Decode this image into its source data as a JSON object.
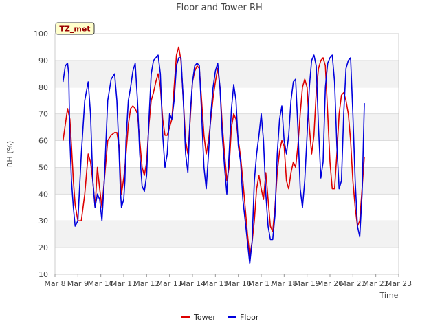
{
  "chart_data": {
    "type": "line",
    "title": "Floor and Tower RH",
    "xlabel": "Time",
    "ylabel": "RH (%)",
    "badge": "TZ_met",
    "ylim": [
      10,
      100
    ],
    "yticks": [
      10,
      20,
      30,
      40,
      50,
      60,
      70,
      80,
      90,
      100
    ],
    "xlim": [
      8,
      23
    ],
    "xticks": [
      {
        "x": 8,
        "label": "Mar 8"
      },
      {
        "x": 9,
        "label": "Mar 9"
      },
      {
        "x": 10,
        "label": "Mar 10"
      },
      {
        "x": 11,
        "label": "Mar 11"
      },
      {
        "x": 12,
        "label": "Mar 12"
      },
      {
        "x": 13,
        "label": "Mar 13"
      },
      {
        "x": 14,
        "label": "Mar 14"
      },
      {
        "x": 15,
        "label": "Mar 15"
      },
      {
        "x": 16,
        "label": "Mar 16"
      },
      {
        "x": 17,
        "label": "Mar 17"
      },
      {
        "x": 18,
        "label": "Mar 18"
      },
      {
        "x": 19,
        "label": "Mar 19"
      },
      {
        "x": 20,
        "label": "Mar 20"
      },
      {
        "x": 21,
        "label": "Mar 21"
      },
      {
        "x": 22,
        "label": "Mar 22"
      },
      {
        "x": 23,
        "label": "Mar 23"
      }
    ],
    "grid": true,
    "legend_position": "bottom",
    "series": [
      {
        "name": "Tower",
        "color": "#dd0000",
        "points": [
          [
            8.35,
            60
          ],
          [
            8.45,
            66
          ],
          [
            8.55,
            72
          ],
          [
            8.65,
            68
          ],
          [
            8.72,
            58
          ],
          [
            8.8,
            45
          ],
          [
            8.88,
            36
          ],
          [
            9.0,
            30
          ],
          [
            9.15,
            30
          ],
          [
            9.3,
            40
          ],
          [
            9.45,
            55
          ],
          [
            9.55,
            52
          ],
          [
            9.65,
            45
          ],
          [
            9.75,
            35
          ],
          [
            9.85,
            50
          ],
          [
            9.95,
            42
          ],
          [
            10.05,
            35
          ],
          [
            10.15,
            45
          ],
          [
            10.3,
            60
          ],
          [
            10.45,
            62
          ],
          [
            10.6,
            63
          ],
          [
            10.7,
            63
          ],
          [
            10.8,
            58
          ],
          [
            10.85,
            48
          ],
          [
            10.9,
            40
          ],
          [
            11.0,
            46
          ],
          [
            11.05,
            50
          ],
          [
            11.1,
            55
          ],
          [
            11.2,
            66
          ],
          [
            11.3,
            72
          ],
          [
            11.4,
            73
          ],
          [
            11.5,
            72
          ],
          [
            11.6,
            70
          ],
          [
            11.7,
            60
          ],
          [
            11.8,
            50
          ],
          [
            11.9,
            47
          ],
          [
            12.0,
            52
          ],
          [
            12.1,
            66
          ],
          [
            12.2,
            75
          ],
          [
            12.3,
            78
          ],
          [
            12.4,
            82
          ],
          [
            12.5,
            85
          ],
          [
            12.6,
            80
          ],
          [
            12.7,
            68
          ],
          [
            12.8,
            62
          ],
          [
            12.9,
            62
          ],
          [
            13.0,
            65
          ],
          [
            13.1,
            68
          ],
          [
            13.2,
            80
          ],
          [
            13.3,
            92
          ],
          [
            13.4,
            95
          ],
          [
            13.5,
            90
          ],
          [
            13.6,
            75
          ],
          [
            13.7,
            60
          ],
          [
            13.8,
            55
          ],
          [
            13.9,
            68
          ],
          [
            14.0,
            82
          ],
          [
            14.1,
            86
          ],
          [
            14.2,
            88
          ],
          [
            14.3,
            87
          ],
          [
            14.4,
            75
          ],
          [
            14.5,
            62
          ],
          [
            14.6,
            55
          ],
          [
            14.7,
            60
          ],
          [
            14.8,
            68
          ],
          [
            14.9,
            76
          ],
          [
            15.0,
            82
          ],
          [
            15.1,
            87
          ],
          [
            15.2,
            80
          ],
          [
            15.3,
            66
          ],
          [
            15.4,
            55
          ],
          [
            15.5,
            45
          ],
          [
            15.6,
            50
          ],
          [
            15.7,
            65
          ],
          [
            15.8,
            70
          ],
          [
            15.9,
            68
          ],
          [
            16.0,
            60
          ],
          [
            16.1,
            54
          ],
          [
            16.2,
            45
          ],
          [
            16.3,
            35
          ],
          [
            16.4,
            25
          ],
          [
            16.5,
            17
          ],
          [
            16.6,
            22
          ],
          [
            16.7,
            30
          ],
          [
            16.8,
            42
          ],
          [
            16.9,
            47
          ],
          [
            17.0,
            42
          ],
          [
            17.1,
            38
          ],
          [
            17.2,
            48
          ],
          [
            17.3,
            38
          ],
          [
            17.4,
            28
          ],
          [
            17.5,
            26
          ],
          [
            17.6,
            35
          ],
          [
            17.7,
            48
          ],
          [
            17.8,
            56
          ],
          [
            17.9,
            60
          ],
          [
            18.0,
            58
          ],
          [
            18.1,
            45
          ],
          [
            18.2,
            42
          ],
          [
            18.3,
            48
          ],
          [
            18.4,
            52
          ],
          [
            18.5,
            50
          ],
          [
            18.6,
            58
          ],
          [
            18.7,
            70
          ],
          [
            18.8,
            80
          ],
          [
            18.9,
            83
          ],
          [
            19.0,
            80
          ],
          [
            19.1,
            65
          ],
          [
            19.2,
            55
          ],
          [
            19.3,
            62
          ],
          [
            19.4,
            78
          ],
          [
            19.5,
            87
          ],
          [
            19.6,
            90
          ],
          [
            19.7,
            91
          ],
          [
            19.8,
            88
          ],
          [
            19.9,
            70
          ],
          [
            20.0,
            52
          ],
          [
            20.1,
            42
          ],
          [
            20.2,
            42
          ],
          [
            20.3,
            55
          ],
          [
            20.4,
            70
          ],
          [
            20.5,
            77
          ],
          [
            20.6,
            78
          ],
          [
            20.7,
            75
          ],
          [
            20.8,
            70
          ],
          [
            20.9,
            60
          ],
          [
            21.0,
            45
          ],
          [
            21.1,
            35
          ],
          [
            21.2,
            28
          ],
          [
            21.3,
            30
          ],
          [
            21.4,
            42
          ],
          [
            21.5,
            54
          ]
        ]
      },
      {
        "name": "Floor",
        "color": "#0000dd",
        "points": [
          [
            8.35,
            82
          ],
          [
            8.45,
            88
          ],
          [
            8.55,
            89
          ],
          [
            8.6,
            85
          ],
          [
            8.65,
            60
          ],
          [
            8.72,
            45
          ],
          [
            8.8,
            35
          ],
          [
            8.88,
            28
          ],
          [
            9.0,
            30
          ],
          [
            9.15,
            55
          ],
          [
            9.3,
            75
          ],
          [
            9.45,
            82
          ],
          [
            9.55,
            70
          ],
          [
            9.65,
            45
          ],
          [
            9.75,
            35
          ],
          [
            9.85,
            40
          ],
          [
            9.95,
            38
          ],
          [
            10.05,
            30
          ],
          [
            10.15,
            45
          ],
          [
            10.3,
            75
          ],
          [
            10.45,
            83
          ],
          [
            10.6,
            85
          ],
          [
            10.7,
            75
          ],
          [
            10.8,
            55
          ],
          [
            10.85,
            42
          ],
          [
            10.9,
            35
          ],
          [
            11.0,
            38
          ],
          [
            11.05,
            45
          ],
          [
            11.1,
            60
          ],
          [
            11.2,
            75
          ],
          [
            11.3,
            80
          ],
          [
            11.4,
            86
          ],
          [
            11.5,
            89
          ],
          [
            11.6,
            75
          ],
          [
            11.7,
            55
          ],
          [
            11.8,
            43
          ],
          [
            11.9,
            41
          ],
          [
            12.0,
            47
          ],
          [
            12.1,
            68
          ],
          [
            12.2,
            85
          ],
          [
            12.3,
            90
          ],
          [
            12.4,
            91
          ],
          [
            12.5,
            92
          ],
          [
            12.6,
            85
          ],
          [
            12.7,
            62
          ],
          [
            12.8,
            50
          ],
          [
            12.9,
            55
          ],
          [
            13.0,
            70
          ],
          [
            13.1,
            68
          ],
          [
            13.2,
            75
          ],
          [
            13.3,
            88
          ],
          [
            13.4,
            91
          ],
          [
            13.5,
            91
          ],
          [
            13.6,
            75
          ],
          [
            13.7,
            55
          ],
          [
            13.8,
            48
          ],
          [
            13.9,
            70
          ],
          [
            14.0,
            82
          ],
          [
            14.1,
            88
          ],
          [
            14.2,
            89
          ],
          [
            14.3,
            88
          ],
          [
            14.4,
            70
          ],
          [
            14.5,
            50
          ],
          [
            14.6,
            42
          ],
          [
            14.7,
            55
          ],
          [
            14.8,
            70
          ],
          [
            14.9,
            80
          ],
          [
            15.0,
            86
          ],
          [
            15.1,
            89
          ],
          [
            15.2,
            80
          ],
          [
            15.3,
            62
          ],
          [
            15.4,
            50
          ],
          [
            15.5,
            40
          ],
          [
            15.6,
            55
          ],
          [
            15.7,
            72
          ],
          [
            15.8,
            81
          ],
          [
            15.9,
            75
          ],
          [
            16.0,
            58
          ],
          [
            16.1,
            52
          ],
          [
            16.2,
            38
          ],
          [
            16.3,
            30
          ],
          [
            16.4,
            22
          ],
          [
            16.5,
            14
          ],
          [
            16.6,
            22
          ],
          [
            16.7,
            45
          ],
          [
            16.8,
            55
          ],
          [
            16.9,
            62
          ],
          [
            17.0,
            70
          ],
          [
            17.1,
            60
          ],
          [
            17.2,
            40
          ],
          [
            17.3,
            28
          ],
          [
            17.4,
            23
          ],
          [
            17.5,
            23
          ],
          [
            17.6,
            32
          ],
          [
            17.7,
            55
          ],
          [
            17.8,
            68
          ],
          [
            17.9,
            73
          ],
          [
            18.0,
            60
          ],
          [
            18.1,
            55
          ],
          [
            18.2,
            62
          ],
          [
            18.3,
            75
          ],
          [
            18.4,
            82
          ],
          [
            18.5,
            83
          ],
          [
            18.6,
            65
          ],
          [
            18.7,
            42
          ],
          [
            18.8,
            35
          ],
          [
            18.9,
            45
          ],
          [
            19.0,
            62
          ],
          [
            19.1,
            80
          ],
          [
            19.2,
            90
          ],
          [
            19.3,
            92
          ],
          [
            19.4,
            88
          ],
          [
            19.5,
            65
          ],
          [
            19.6,
            46
          ],
          [
            19.7,
            52
          ],
          [
            19.8,
            80
          ],
          [
            19.9,
            89
          ],
          [
            20.0,
            91
          ],
          [
            20.1,
            92
          ],
          [
            20.2,
            82
          ],
          [
            20.3,
            58
          ],
          [
            20.4,
            42
          ],
          [
            20.5,
            45
          ],
          [
            20.6,
            70
          ],
          [
            20.7,
            87
          ],
          [
            20.8,
            90
          ],
          [
            20.9,
            91
          ],
          [
            21.0,
            70
          ],
          [
            21.1,
            45
          ],
          [
            21.2,
            28
          ],
          [
            21.3,
            24
          ],
          [
            21.4,
            40
          ],
          [
            21.5,
            74
          ]
        ]
      }
    ]
  }
}
